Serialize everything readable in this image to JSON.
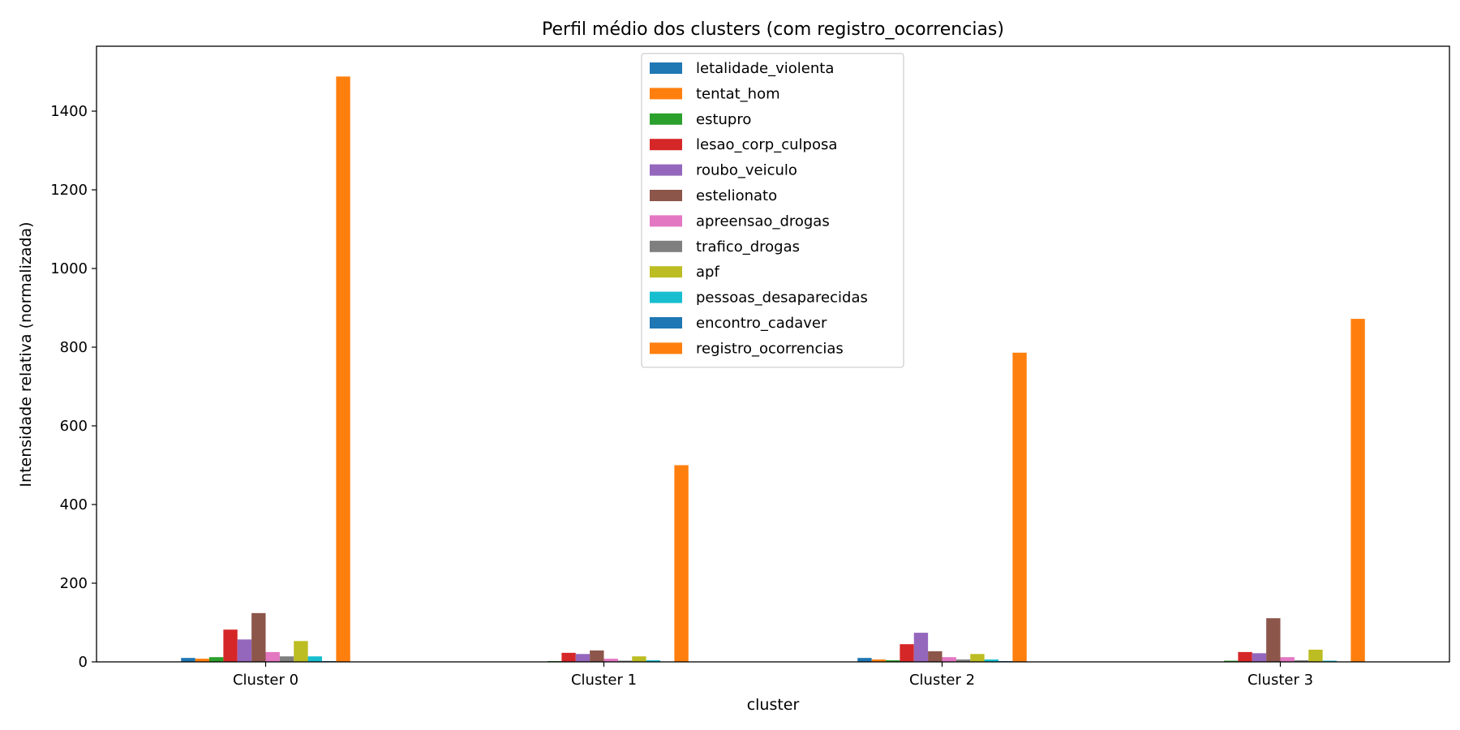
{
  "chart_data": {
    "type": "bar",
    "title": "Perfil médio dos clusters (com registro_ocorrencias)",
    "xlabel": "cluster",
    "ylabel": "Intensidade relativa (normalizada)",
    "categories": [
      "Cluster 0",
      "Cluster 1",
      "Cluster 2",
      "Cluster 3"
    ],
    "ylim": [
      0,
      1565
    ],
    "yticks": [
      0,
      200,
      400,
      600,
      800,
      1000,
      1200,
      1400
    ],
    "grid": false,
    "legend_position": "top-center",
    "series": [
      {
        "name": "letalidade_violenta",
        "color": "#1f77b4",
        "values": [
          10,
          1,
          10,
          1
        ]
      },
      {
        "name": "tentat_hom",
        "color": "#ff7f0e",
        "values": [
          8,
          1,
          6,
          1
        ]
      },
      {
        "name": "estupro",
        "color": "#2ca02c",
        "values": [
          12,
          2,
          4,
          3
        ]
      },
      {
        "name": "lesao_corp_culposa",
        "color": "#d62728",
        "values": [
          82,
          23,
          45,
          25
        ]
      },
      {
        "name": "roubo_veiculo",
        "color": "#9467bd",
        "values": [
          57,
          20,
          74,
          22
        ]
      },
      {
        "name": "estelionato",
        "color": "#8c564b",
        "values": [
          124,
          29,
          27,
          111
        ]
      },
      {
        "name": "apreensao_drogas",
        "color": "#e377c2",
        "values": [
          25,
          8,
          12,
          12
        ]
      },
      {
        "name": "trafico_drogas",
        "color": "#7f7f7f",
        "values": [
          14,
          3,
          6,
          4
        ]
      },
      {
        "name": "apf",
        "color": "#bcbd22",
        "values": [
          53,
          14,
          20,
          31
        ]
      },
      {
        "name": "pessoas_desaparecidas",
        "color": "#17becf",
        "values": [
          14,
          4,
          6,
          3
        ]
      },
      {
        "name": "encontro_cadaver",
        "color": "#1f77b4",
        "values": [
          2,
          1,
          2,
          1
        ]
      },
      {
        "name": "registro_ocorrencias",
        "color": "#ff7f0e",
        "values": [
          1488,
          500,
          786,
          872
        ]
      }
    ]
  }
}
